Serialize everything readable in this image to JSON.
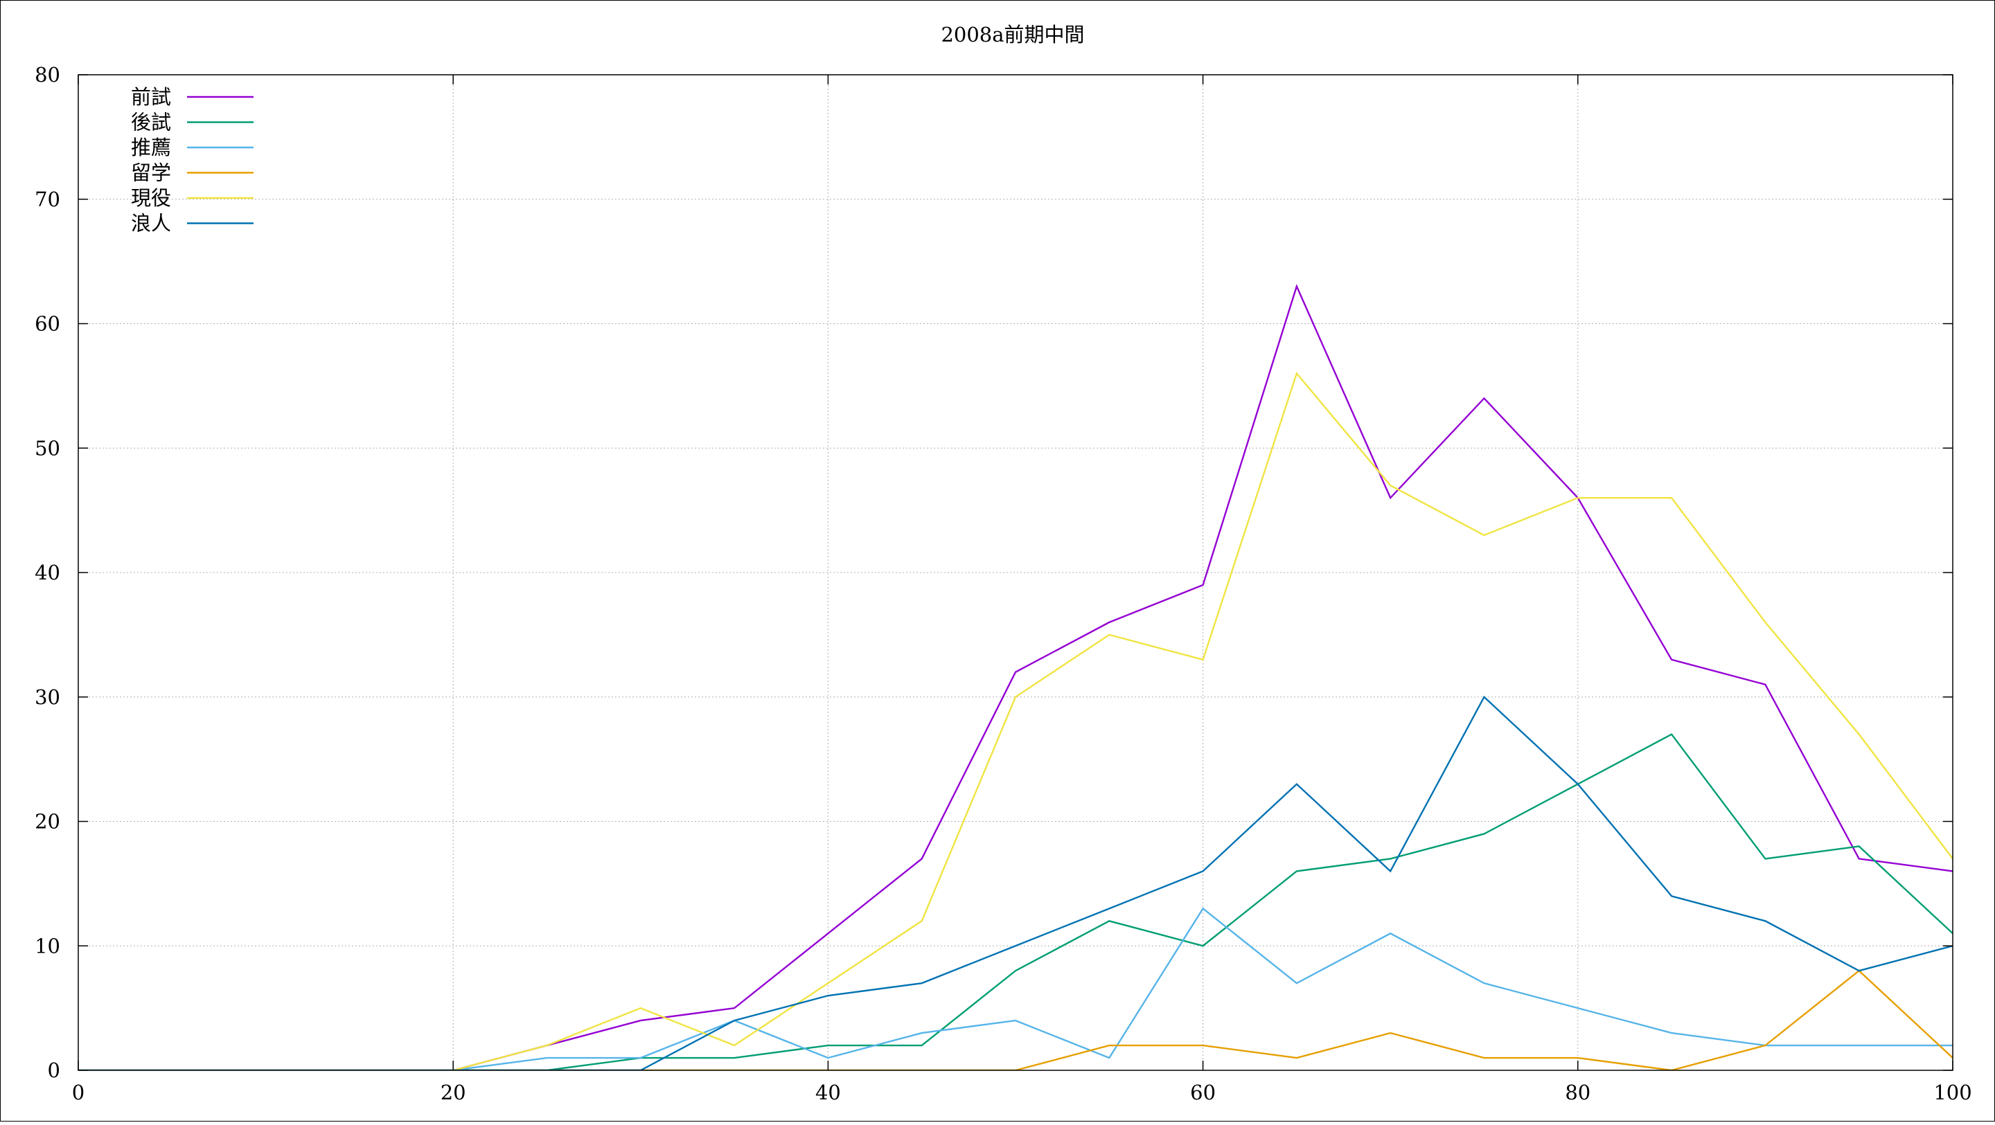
{
  "chart_data": {
    "type": "line",
    "title": "2008a前期中間",
    "xlabel": "",
    "ylabel": "",
    "xlim": [
      0,
      100
    ],
    "ylim": [
      0,
      80
    ],
    "xticks": [
      0,
      20,
      40,
      60,
      80,
      100
    ],
    "yticks": [
      0,
      10,
      20,
      30,
      40,
      50,
      60,
      70,
      80
    ],
    "grid": true,
    "legend_position": "top-left",
    "x": [
      0,
      5,
      10,
      15,
      20,
      25,
      30,
      35,
      40,
      45,
      50,
      55,
      60,
      65,
      70,
      75,
      80,
      85,
      90,
      95,
      100
    ],
    "series": [
      {
        "name": "前試",
        "color": "#9400d3",
        "values": [
          0,
          0,
          0,
          0,
          0,
          2,
          4,
          5,
          11,
          17,
          32,
          36,
          39,
          63,
          46,
          54,
          46,
          33,
          31,
          17,
          16
        ]
      },
      {
        "name": "後試",
        "color": "#009e73",
        "values": [
          0,
          0,
          0,
          0,
          0,
          0,
          1,
          1,
          2,
          2,
          8,
          12,
          10,
          16,
          17,
          19,
          23,
          27,
          17,
          18,
          11
        ]
      },
      {
        "name": "推薦",
        "color": "#56b4e9",
        "values": [
          0,
          0,
          0,
          0,
          0,
          1,
          1,
          4,
          1,
          3,
          4,
          1,
          13,
          7,
          11,
          7,
          5,
          3,
          2,
          2,
          2
        ]
      },
      {
        "name": "留学",
        "color": "#e69f00",
        "values": [
          0,
          0,
          0,
          0,
          0,
          0,
          0,
          0,
          0,
          0,
          0,
          2,
          2,
          1,
          3,
          1,
          1,
          0,
          2,
          8,
          1
        ]
      },
      {
        "name": "現役",
        "color": "#f0e442",
        "values": [
          0,
          0,
          0,
          0,
          0,
          2,
          5,
          2,
          7,
          12,
          30,
          35,
          33,
          56,
          47,
          43,
          46,
          46,
          36,
          27,
          17
        ]
      },
      {
        "name": "浪人",
        "color": "#0072b2",
        "values": [
          0,
          0,
          0,
          0,
          0,
          0,
          0,
          4,
          6,
          7,
          10,
          13,
          16,
          23,
          16,
          30,
          23,
          14,
          12,
          8,
          10
        ]
      }
    ]
  }
}
